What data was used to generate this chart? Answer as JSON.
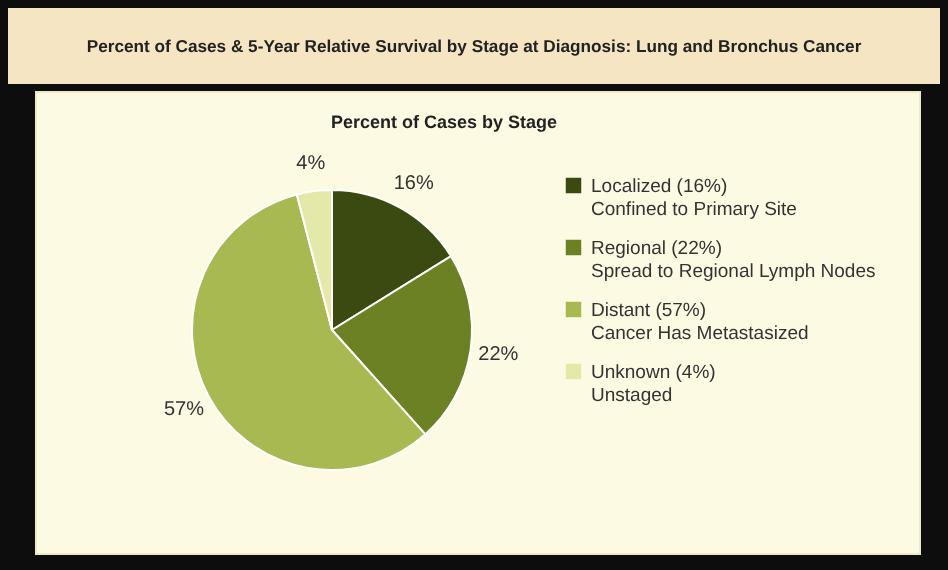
{
  "chart_data": {
    "type": "pie",
    "title": "Percent of Cases & 5-Year Relative Survival by Stage at Diagnosis: Lung and Bronchus Cancer",
    "subtitle": "Percent of Cases by Stage",
    "categories": [
      "Localized (16%)\nConfined to Primary Site",
      "Regional (22%)\nSpread to Regional Lymph Nodes",
      "Distant (57%)\nCancer Has Metastasized",
      "Unknown (4%)\nUnstaged"
    ],
    "values": [
      16,
      22,
      57,
      4
    ],
    "value_labels": [
      "16%",
      "22%",
      "57%",
      "4%"
    ],
    "colors": [
      "#3b4a10",
      "#6b8124",
      "#a9b951",
      "#e4e8a8"
    ],
    "legend": "right"
  }
}
